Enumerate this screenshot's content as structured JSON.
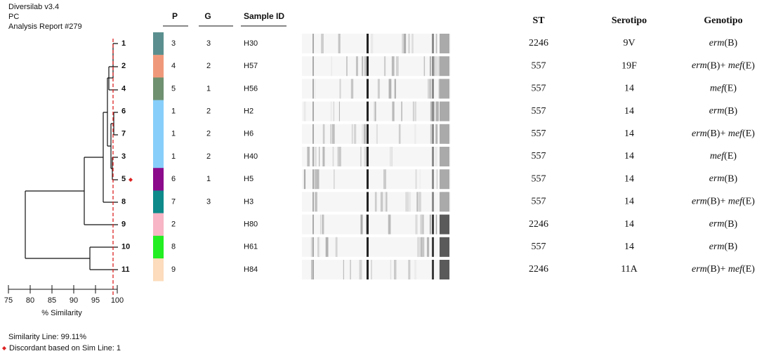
{
  "header": {
    "lines": [
      "Diversilab v3.4",
      "PC",
      "Analysis Report #279"
    ]
  },
  "columns": {
    "p": "P",
    "g": "G",
    "sample": "Sample ID",
    "st": "ST",
    "serotipo": "Serotipo",
    "genotipo": "Genotipo"
  },
  "rows": [
    {
      "isolate": "1",
      "color": "#5b8f8f",
      "p": "3",
      "g": "3",
      "sample": "H30",
      "st": "2246",
      "serotipo": "9V",
      "genotipo": "erm(B)"
    },
    {
      "isolate": "2",
      "color": "#f0997a",
      "p": "4",
      "g": "2",
      "sample": "H57",
      "st": "557",
      "serotipo": "19F",
      "genotipo": "erm(B)+ mef(E)"
    },
    {
      "isolate": "4",
      "color": "#6f9170",
      "p": "5",
      "g": "1",
      "sample": "H56",
      "st": "557",
      "serotipo": "14",
      "genotipo": "mef(E)"
    },
    {
      "isolate": "6",
      "color": "#87cefa",
      "p": "1",
      "g": "2",
      "sample": "H2",
      "st": "557",
      "serotipo": "14",
      "genotipo": "erm(B)"
    },
    {
      "isolate": "7",
      "color": "#87cefa",
      "p": "1",
      "g": "2",
      "sample": "H6",
      "st": "557",
      "serotipo": "14",
      "genotipo": "erm(B)+ mef(E)"
    },
    {
      "isolate": "3",
      "color": "#87cefa",
      "p": "1",
      "g": "2",
      "sample": "H40",
      "st": "557",
      "serotipo": "14",
      "genotipo": "mef(E)"
    },
    {
      "isolate": "5",
      "color": "#8b0a8b",
      "p": "6",
      "g": "1",
      "sample": "H5",
      "st": "557",
      "serotipo": "14",
      "genotipo": "erm(B)"
    },
    {
      "isolate": "8",
      "color": "#0e8a8a",
      "p": "7",
      "g": "3",
      "sample": "H3",
      "st": "557",
      "serotipo": "14",
      "genotipo": "erm(B)+ mef(E)"
    },
    {
      "isolate": "9",
      "color": "#f7b5c5",
      "p": "2",
      "g": "",
      "sample": "H80",
      "st": "2246",
      "serotipo": "14",
      "genotipo": "erm(B)"
    },
    {
      "isolate": "10",
      "color": "#22ee22",
      "p": "8",
      "g": "",
      "sample": "H61",
      "st": "557",
      "serotipo": "14",
      "genotipo": "erm(B)"
    },
    {
      "isolate": "11",
      "color": "#fcdcbc",
      "p": "9",
      "g": "",
      "sample": "H84",
      "st": "2246",
      "serotipo": "11A",
      "genotipo": "erm(B)+ mef(E)"
    }
  ],
  "axis": {
    "label": "% Similarity",
    "ticks": [
      75,
      80,
      85,
      90,
      95,
      100
    ]
  },
  "footer": {
    "similarity_line": "Similarity Line: 99.11%",
    "discordant": "Discordant based on Sim Line: 1"
  }
}
